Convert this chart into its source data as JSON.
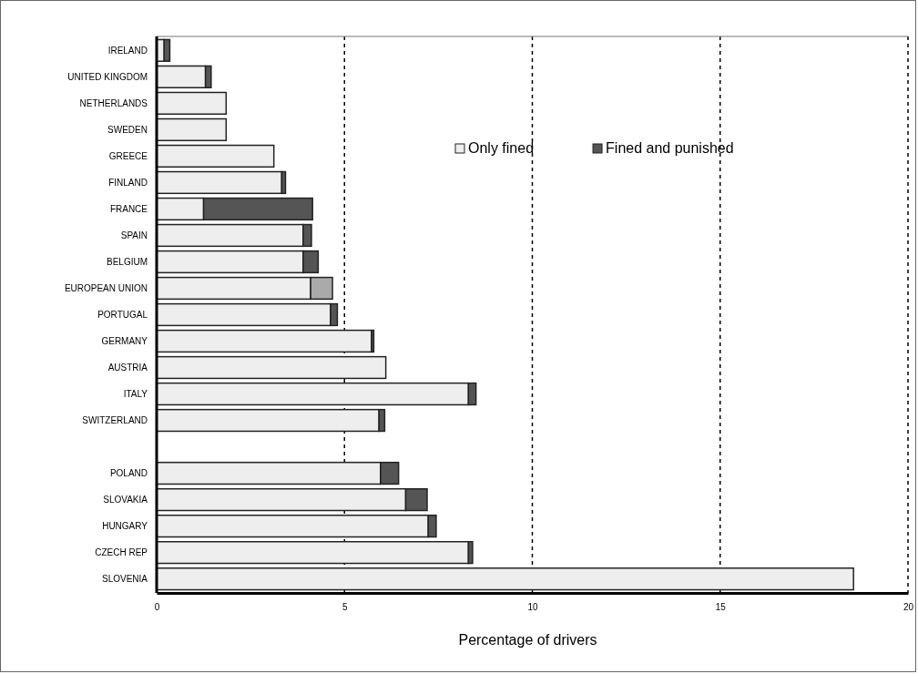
{
  "chart_data": {
    "type": "bar",
    "orientation": "horizontal",
    "stacked": true,
    "xlabel": "Percentage of drivers",
    "categories": [
      "IRELAND",
      "UNITED KINGDOM",
      "NETHERLANDS",
      "SWEDEN",
      "GREECE",
      "FINLAND",
      "FRANCE",
      "SPAIN",
      "BELGIUM",
      "EUROPEAN UNION",
      "PORTUGAL",
      "GERMANY",
      "AUSTRIA",
      "ITALY",
      "SWITZERLAND",
      null,
      "POLAND",
      "SLOVAKIA",
      "HUNGARY",
      "CZECH REP",
      "SLOVENIA"
    ],
    "series": [
      {
        "name": "Only fined",
        "color": "#eeeeee",
        "values": [
          0.2,
          1.3,
          1.85,
          1.85,
          3.12,
          3.33,
          1.25,
          3.9,
          3.9,
          4.1,
          4.63,
          5.72,
          6.1,
          8.3,
          5.92,
          null,
          5.96,
          6.63,
          7.23,
          8.3,
          18.55
        ]
      },
      {
        "name": "Fined and punished",
        "color": "#555555",
        "colors": [
          "#555555",
          "#555555",
          "#555555",
          "#555555",
          "#555555",
          "#555555",
          "#555555",
          "#555555",
          "#555555",
          "#aaaaaa",
          "#555555",
          "#555555",
          "#555555",
          "#555555",
          "#555555",
          null,
          "#555555",
          "#555555",
          "#555555",
          "#555555",
          "#555555"
        ],
        "values": [
          0.15,
          0.15,
          0,
          0,
          0,
          0.1,
          2.9,
          0.22,
          0.4,
          0.58,
          0.18,
          0.06,
          0,
          0.2,
          0.15,
          null,
          0.48,
          0.57,
          0.21,
          0.11,
          0
        ]
      }
    ],
    "xlim": [
      0,
      20
    ],
    "xticks": [
      0,
      5,
      10,
      15,
      20
    ],
    "grid": "x",
    "line_style": "dashed",
    "legend": "top right"
  }
}
